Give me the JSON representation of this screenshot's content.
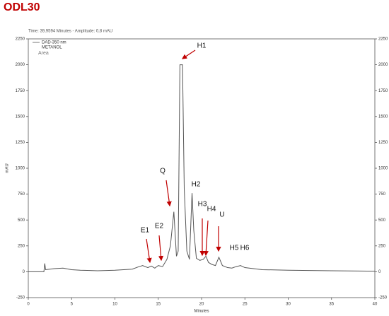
{
  "chart_data": {
    "type": "line",
    "title": "ODL30",
    "subtitle": "Time: 39,9594 Minutes - Amplitude: 0,8 mAU",
    "legend": [
      "DAD-350 nm",
      "METANOL",
      "Area"
    ],
    "xlabel": "Minutes",
    "ylabel": "mAU",
    "color": "#555555",
    "x": [
      0,
      1.8,
      1.9,
      2.0,
      3,
      4,
      5,
      6,
      8,
      10,
      11,
      12,
      12.8,
      13.2,
      13.8,
      14.2,
      14.6,
      15,
      15.5,
      16,
      16.4,
      16.8,
      17.1,
      17.3,
      17.5,
      17.8,
      18.0,
      18.3,
      18.6,
      18.9,
      19.1,
      19.4,
      19.8,
      20.2,
      20.5,
      20.8,
      21.2,
      21.6,
      22.0,
      22.4,
      23,
      23.5,
      24,
      24.5,
      25,
      26,
      27,
      30,
      35,
      40
    ],
    "values": [
      0,
      0,
      80,
      20,
      30,
      35,
      20,
      15,
      10,
      15,
      20,
      25,
      50,
      60,
      40,
      55,
      35,
      60,
      50,
      120,
      250,
      580,
      150,
      200,
      2000,
      2000,
      800,
      200,
      120,
      760,
      400,
      130,
      110,
      120,
      150,
      90,
      70,
      60,
      140,
      60,
      40,
      35,
      50,
      60,
      40,
      30,
      20,
      15,
      10,
      5
    ],
    "xlim": [
      0,
      40
    ],
    "ylim": [
      -250,
      2250
    ],
    "xticks": [
      0,
      5,
      10,
      15,
      20,
      25,
      30,
      35,
      40
    ],
    "yticks": [
      -250,
      0,
      250,
      500,
      750,
      1000,
      1250,
      1500,
      1750,
      2000,
      2250
    ],
    "annotations": [
      "H1",
      "Q",
      "H2",
      "H3",
      "H4",
      "U",
      "E1",
      "E2",
      "H5",
      "H6"
    ]
  }
}
